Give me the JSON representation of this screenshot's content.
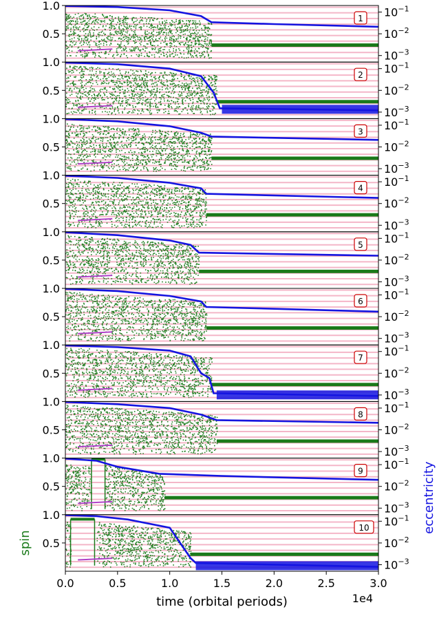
{
  "chart_data": {
    "type": "scatter",
    "n_panels": 10,
    "xlabel": "time (orbital periods)",
    "x_offset_label": "1e4",
    "xlim": [
      0.0,
      3.0
    ],
    "x_ticks": [
      "0.0",
      "0.5",
      "1.0",
      "1.5",
      "2.0",
      "2.5",
      "3.0"
    ],
    "ylabel_left": "spin",
    "ylabel_right": "eccentricity",
    "left_yticks": [
      "0.5",
      "1.0"
    ],
    "right_yticks": [
      {
        "base": "10",
        "exp": "−1"
      },
      {
        "base": "10",
        "exp": "−2"
      },
      {
        "base": "10",
        "exp": "−3"
      }
    ],
    "left_ylim": [
      0.0,
      1.0
    ],
    "right_scale": "log",
    "right_ylim": [
      0.0005,
      0.2
    ],
    "colors": {
      "spin": "#1a7a1a",
      "eccentricity": "#1414e0",
      "resonance_lines": "#f4b6c8",
      "label_box": "#cc0000",
      "purple_mark": "#b040c8"
    },
    "panels": [
      {
        "label": "1",
        "spin_end": 0.3,
        "spin_noise_top": 0.9,
        "transition_t": 1.4,
        "ecc": [
          [
            0,
            0.19
          ],
          [
            0.5,
            0.17
          ],
          [
            1.0,
            0.12
          ],
          [
            1.3,
            0.065
          ],
          [
            1.4,
            0.034
          ],
          [
            2.0,
            0.028
          ],
          [
            3.0,
            0.021
          ]
        ],
        "chaotic_segments": [
          [
            0,
            1.4
          ]
        ],
        "flat_segments": []
      },
      {
        "label": "2",
        "spin_end": 0.3,
        "spin_noise_top": 0.95,
        "transition_t": 1.45,
        "ecc": [
          [
            0,
            0.19
          ],
          [
            0.5,
            0.16
          ],
          [
            1.0,
            0.1
          ],
          [
            1.3,
            0.045
          ],
          [
            1.42,
            0.008
          ],
          [
            1.48,
            0.0015
          ],
          [
            3.0,
            0.0012
          ]
        ],
        "chaotic_segments": [
          [
            0,
            1.45
          ]
        ],
        "flat_segments": []
      },
      {
        "label": "3",
        "spin_end": 0.3,
        "spin_noise_top": 0.92,
        "transition_t": 1.4,
        "ecc": [
          [
            0,
            0.19
          ],
          [
            0.5,
            0.15
          ],
          [
            1.0,
            0.09
          ],
          [
            1.3,
            0.045
          ],
          [
            1.4,
            0.03
          ],
          [
            3.0,
            0.021
          ]
        ],
        "chaotic_segments": [
          [
            0,
            1.4
          ]
        ],
        "flat_segments": []
      },
      {
        "label": "4",
        "spin_end": 0.3,
        "spin_noise_top": 0.95,
        "transition_t": 1.35,
        "ecc": [
          [
            0,
            0.19
          ],
          [
            0.5,
            0.15
          ],
          [
            1.0,
            0.09
          ],
          [
            1.3,
            0.05
          ],
          [
            1.35,
            0.028
          ],
          [
            3.0,
            0.018
          ]
        ],
        "chaotic_segments": [
          [
            0,
            1.35
          ]
        ],
        "flat_segments": []
      },
      {
        "label": "5",
        "spin_end": 0.3,
        "spin_noise_top": 0.95,
        "transition_t": 1.28,
        "ecc": [
          [
            0,
            0.19
          ],
          [
            0.5,
            0.14
          ],
          [
            1.0,
            0.08
          ],
          [
            1.2,
            0.05
          ],
          [
            1.28,
            0.022
          ],
          [
            3.0,
            0.016
          ]
        ],
        "chaotic_segments": [
          [
            0,
            1.28
          ]
        ],
        "flat_segments": []
      },
      {
        "label": "6",
        "spin_end": 0.3,
        "spin_noise_top": 0.95,
        "transition_t": 1.35,
        "ecc": [
          [
            0,
            0.19
          ],
          [
            0.5,
            0.15
          ],
          [
            1.0,
            0.09
          ],
          [
            1.3,
            0.05
          ],
          [
            1.35,
            0.028
          ],
          [
            3.0,
            0.017
          ]
        ],
        "chaotic_segments": [
          [
            0,
            1.35
          ]
        ],
        "flat_segments": []
      },
      {
        "label": "7",
        "spin_end": 0.3,
        "spin_noise_top": 0.97,
        "transition_t": 1.4,
        "ecc": [
          [
            0,
            0.19
          ],
          [
            0.5,
            0.16
          ],
          [
            1.0,
            0.11
          ],
          [
            1.2,
            0.06
          ],
          [
            1.3,
            0.01
          ],
          [
            1.38,
            0.006
          ],
          [
            1.42,
            0.0012
          ],
          [
            3.0,
            0.0009
          ]
        ],
        "chaotic_segments": [
          [
            0,
            1.4
          ]
        ],
        "flat_segments": []
      },
      {
        "label": "8",
        "spin_end": 0.3,
        "spin_noise_top": 0.95,
        "transition_t": 1.45,
        "ecc": [
          [
            0,
            0.19
          ],
          [
            0.5,
            0.15
          ],
          [
            1.0,
            0.1
          ],
          [
            1.3,
            0.05
          ],
          [
            1.45,
            0.028
          ],
          [
            3.0,
            0.021
          ]
        ],
        "chaotic_segments": [
          [
            0,
            1.45
          ]
        ],
        "flat_segments": []
      },
      {
        "label": "9",
        "spin_end": 0.3,
        "spin_noise_top": 0.9,
        "transition_t": 0.95,
        "ecc": [
          [
            0,
            0.19
          ],
          [
            0.3,
            0.15
          ],
          [
            0.5,
            0.08
          ],
          [
            0.9,
            0.038
          ],
          [
            1.5,
            0.03
          ],
          [
            3.0,
            0.02
          ]
        ],
        "chaotic_segments": [
          [
            0,
            0.25
          ],
          [
            0.38,
            0.95
          ]
        ],
        "flat_segments": [
          [
            0.25,
            0.38,
            0.98
          ]
        ]
      },
      {
        "label": "10",
        "spin_end": 0.3,
        "spin_noise_top": 0.88,
        "transition_t": 1.2,
        "ecc": [
          [
            0,
            0.19
          ],
          [
            0.3,
            0.17
          ],
          [
            0.6,
            0.12
          ],
          [
            1.0,
            0.05
          ],
          [
            1.1,
            0.01
          ],
          [
            1.2,
            0.002
          ],
          [
            1.25,
            0.0012
          ],
          [
            3.0,
            0.0008
          ]
        ],
        "chaotic_segments": [
          [
            0,
            0.05
          ],
          [
            0.3,
            1.2
          ]
        ],
        "flat_segments": [
          [
            0.05,
            0.28,
            0.92
          ]
        ]
      }
    ]
  }
}
